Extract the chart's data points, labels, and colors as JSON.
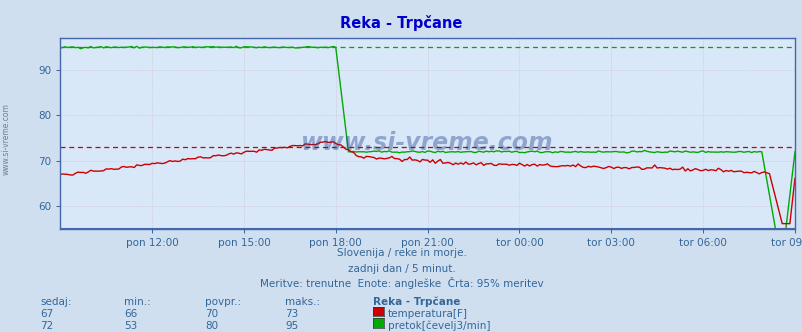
{
  "title": "Reka - Trpčane",
  "title_color": "#0000cc",
  "bg_color": "#d0dff0",
  "plot_bg_color": "#d8e8f8",
  "grid_color_minor": "#c8d4e8",
  "grid_color_major": "#b8c8dc",
  "border_color": "#4466aa",
  "text_color": "#336699",
  "ylim": [
    55,
    97
  ],
  "yticks": [
    60,
    70,
    80,
    90
  ],
  "xtick_labels": [
    "pon 12:00",
    "pon 15:00",
    "pon 18:00",
    "pon 21:00",
    "tor 00:00",
    "tor 03:00",
    "tor 06:00",
    "tor 09:00"
  ],
  "xtick_positions": [
    36,
    72,
    108,
    144,
    180,
    216,
    252,
    288
  ],
  "subtitle1": "Slovenija / reke in morje.",
  "subtitle2": "zadnji dan / 5 minut.",
  "subtitle3": "Meritve: trenutne  Enote: angleške  Črta: 95% meritev",
  "footer_color": "#336699",
  "temp_avg_line": 73,
  "flow_avg_line": 95,
  "temp_color": "#cc0000",
  "flow_color": "#00aa00",
  "watermark": "www.si-vreme.com",
  "watermark_color": "#1a3a8a",
  "table_headers": [
    "sedaj:",
    "min.:",
    "povpr.:",
    "maks.:",
    "Reka - Trpčane"
  ],
  "temp_stats": [
    67,
    66,
    70,
    73
  ],
  "flow_stats": [
    72,
    53,
    80,
    95
  ],
  "temp_label": "temperatura[F]",
  "flow_label": "pretok[čevelj3/min]",
  "sidebar_text": "www.si-vreme.com",
  "N": 289,
  "xmax": 288
}
